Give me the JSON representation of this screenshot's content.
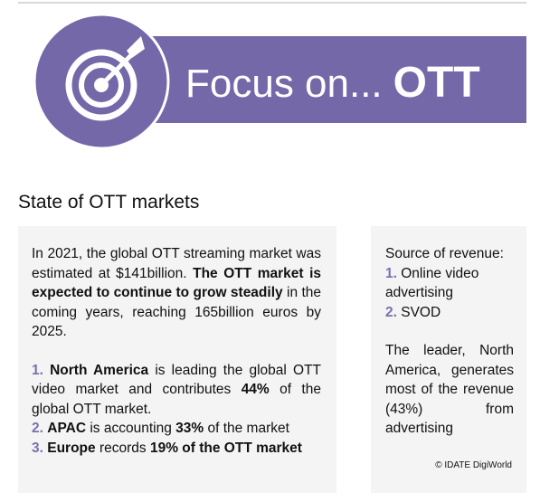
{
  "header": {
    "title_prefix": "Focus on...",
    "title_emphasis": "OTT"
  },
  "section_title": "State of OTT markets",
  "left_box": {
    "intro": [
      {
        "text": "In 2021, the global OTT streaming market was estimated at $141billion. ",
        "bold": false
      },
      {
        "text": "The OTT market is expected to continue to grow steadily",
        "bold": true
      },
      {
        "text": " in the coming years, reaching 165billion euros by 2025.",
        "bold": false
      }
    ],
    "list": [
      {
        "number": "1.",
        "runs": [
          {
            "text": "North America",
            "bold": true
          },
          {
            "text": " is leading the global OTT video market and contributes ",
            "bold": false
          },
          {
            "text": "44%",
            "bold": true
          },
          {
            "text": " of the global OTT market.",
            "bold": false
          }
        ]
      },
      {
        "number": "2.",
        "runs": [
          {
            "text": "APAC",
            "bold": true
          },
          {
            "text": " is accounting ",
            "bold": false
          },
          {
            "text": "33%",
            "bold": true
          },
          {
            "text": " of the market",
            "bold": false
          }
        ]
      },
      {
        "number": "3.",
        "runs": [
          {
            "text": "Europe",
            "bold": true
          },
          {
            "text": " records ",
            "bold": false
          },
          {
            "text": "19% of the OTT market",
            "bold": true
          }
        ]
      }
    ]
  },
  "right_box": {
    "revenue_title": "Source of revenue:",
    "sources": [
      {
        "number": "1.",
        "label": "Online video advertising"
      },
      {
        "number": "2.",
        "label": "SVOD"
      }
    ],
    "leader_note": "The leader, North America, generates most of the revenue (43%) from advertising",
    "credit": "© IDATE DigiWorld"
  }
}
